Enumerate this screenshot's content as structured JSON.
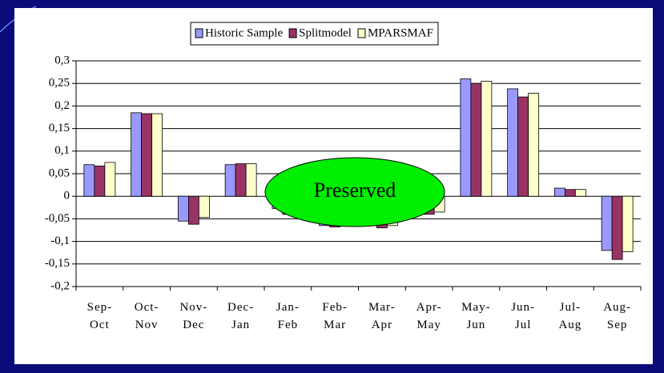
{
  "chart_data": {
    "type": "bar",
    "categories": [
      "Sep-Oct",
      "Oct-Nov",
      "Nov-Dec",
      "Dec-Jan",
      "Jan-Feb",
      "Feb-Mar",
      "Mar-Apr",
      "Apr-May",
      "May-Jun",
      "Jun-Jul",
      "Jul-Aug",
      "Aug-Sep"
    ],
    "series": [
      {
        "name": "Historic Sample",
        "color": "#9999ff",
        "values": [
          0.07,
          0.185,
          -0.055,
          0.07,
          -0.027,
          -0.065,
          -0.065,
          -0.02,
          0.26,
          0.238,
          0.018,
          -0.12
        ]
      },
      {
        "name": "Splitmodel",
        "color": "#993366",
        "values": [
          0.067,
          0.183,
          -0.062,
          0.072,
          -0.04,
          -0.068,
          -0.07,
          -0.04,
          0.25,
          0.22,
          0.015,
          -0.14
        ]
      },
      {
        "name": "MPARSMAF",
        "color": "#ffffcc",
        "values": [
          0.075,
          0.183,
          -0.047,
          0.072,
          -0.035,
          -0.065,
          -0.065,
          -0.035,
          0.255,
          0.228,
          0.015,
          -0.123
        ]
      }
    ],
    "ylim": [
      -0.2,
      0.3
    ],
    "yticks": [
      {
        "value": 0.3,
        "label": "0,3"
      },
      {
        "value": 0.25,
        "label": "0,25"
      },
      {
        "value": 0.2,
        "label": "0,2"
      },
      {
        "value": 0.15,
        "label": "0,15"
      },
      {
        "value": 0.1,
        "label": "0,1"
      },
      {
        "value": 0.05,
        "label": "0,05"
      },
      0,
      {
        "value": -0.05,
        "label": "-0,05"
      },
      {
        "value": -0.1,
        "label": "-0,1"
      },
      {
        "value": -0.15,
        "label": "-0,15"
      },
      {
        "value": -0.2,
        "label": "-0,2"
      }
    ],
    "grid": true,
    "legend": "top",
    "annotation": "Preserved"
  }
}
